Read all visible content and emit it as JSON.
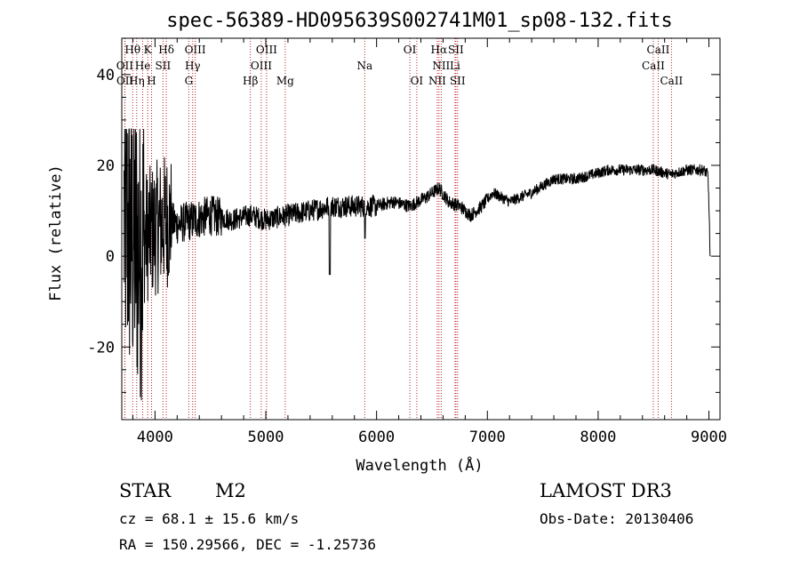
{
  "chart_data": {
    "type": "line",
    "title": "spec-56389-HD095639S002741M01_sp08-132.fits",
    "xlabel": "Wavelength (Å)",
    "ylabel": "Flux (relative)",
    "xlim": [
      3700,
      9100
    ],
    "ylim": [
      -36,
      48
    ],
    "xticks": [
      4000,
      5000,
      6000,
      7000,
      8000,
      9000
    ],
    "yticks": [
      -20,
      0,
      20,
      40
    ],
    "spectrum_anchor_points": {
      "x": [
        3720,
        3800,
        3860,
        3900,
        4000,
        4100,
        4200,
        4350,
        4500,
        4700,
        4860,
        5000,
        5200,
        5400,
        5580,
        5700,
        5895,
        6000,
        6150,
        6300,
        6450,
        6563,
        6650,
        6750,
        6850,
        6950,
        7050,
        7200,
        7400,
        7600,
        7800,
        7950,
        8100,
        8300,
        8500,
        8650,
        8800,
        8950,
        8990,
        9000,
        9010
      ],
      "y": [
        8,
        4,
        2,
        4,
        6,
        8,
        7,
        8,
        9,
        8,
        9,
        8,
        9,
        10,
        11,
        11,
        11,
        11,
        12,
        11,
        13,
        15,
        12,
        11,
        9,
        11,
        14,
        12,
        14,
        17,
        17,
        18,
        19,
        19,
        19,
        18,
        19,
        19,
        18,
        12,
        0
      ]
    },
    "spectral_lines": [
      {
        "name": "Hθ",
        "wavelength": 3798,
        "row": 0
      },
      {
        "name": "K",
        "wavelength": 3934,
        "row": 0
      },
      {
        "name": "Hδ",
        "wavelength": 4102,
        "row": 0
      },
      {
        "name": "OIII",
        "wavelength": 4363,
        "row": 0
      },
      {
        "name": "OIII",
        "wavelength": 5007,
        "row": 0
      },
      {
        "name": "OI",
        "wavelength": 6300,
        "row": 0
      },
      {
        "name": "Hα",
        "wavelength": 6563,
        "row": 0
      },
      {
        "name": "SII",
        "wavelength": 6716,
        "row": 0
      },
      {
        "name": "CaII",
        "wavelength": 8542,
        "row": 0
      },
      {
        "name": "OII",
        "wavelength": 3727,
        "row": 1
      },
      {
        "name": "He",
        "wavelength": 3889,
        "row": 1
      },
      {
        "name": "SII",
        "wavelength": 4072,
        "row": 1
      },
      {
        "name": "Hγ",
        "wavelength": 4340,
        "row": 1
      },
      {
        "name": "OIII",
        "wavelength": 4959,
        "row": 1
      },
      {
        "name": "Na",
        "wavelength": 5893,
        "row": 1
      },
      {
        "name": "NII",
        "wavelength": 6583,
        "row": 1
      },
      {
        "name": "Li",
        "wavelength": 6708,
        "row": 1
      },
      {
        "name": "CaII",
        "wavelength": 8498,
        "row": 1
      },
      {
        "name": "OII",
        "wavelength": 3729,
        "row": 2
      },
      {
        "name": "Hη",
        "wavelength": 3835,
        "row": 2
      },
      {
        "name": "H",
        "wavelength": 3969,
        "row": 2
      },
      {
        "name": "G",
        "wavelength": 4305,
        "row": 2
      },
      {
        "name": "Hβ",
        "wavelength": 4861,
        "row": 2
      },
      {
        "name": "Mg",
        "wavelength": 5175,
        "row": 2
      },
      {
        "name": "OI",
        "wavelength": 6363,
        "row": 2
      },
      {
        "name": "NII",
        "wavelength": 6548,
        "row": 2
      },
      {
        "name": "SII",
        "wavelength": 6731,
        "row": 2
      },
      {
        "name": "CaII",
        "wavelength": 8662,
        "row": 2
      }
    ]
  },
  "info": {
    "class": "STAR",
    "subclass": "M2",
    "survey": "LAMOST DR3",
    "cz": "cz = 68.1 ± 15.6 km/s",
    "obs_date": "Obs-Date: 20130406",
    "coords": "RA = 150.29566, DEC =  -1.25736"
  },
  "colors": {
    "line_marker": "#b22222",
    "spectrum": "#000000"
  }
}
